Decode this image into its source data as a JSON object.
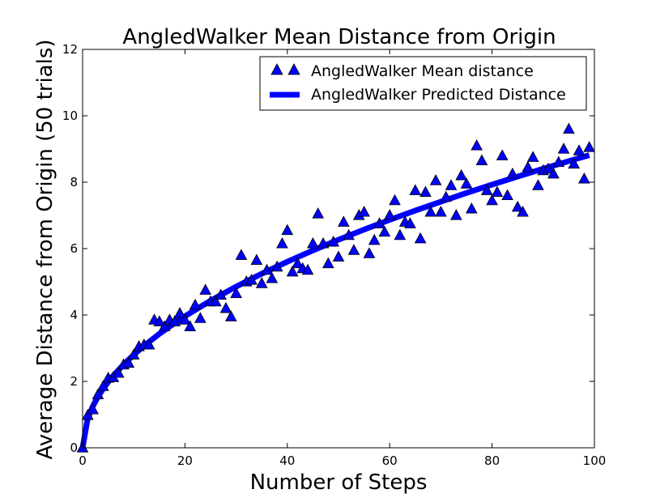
{
  "chart_data": {
    "type": "scatter",
    "title": "AngledWalker Mean Distance from Origin",
    "xlabel": "Number of Steps",
    "ylabel": "Average Distance from Origin (50 trials)",
    "xlim": [
      0,
      100
    ],
    "ylim": [
      0,
      12
    ],
    "xticks": [
      0,
      20,
      40,
      60,
      80,
      100
    ],
    "yticks": [
      0,
      2,
      4,
      6,
      8,
      10,
      12
    ],
    "grid": false,
    "legend_position": "top-right",
    "series": [
      {
        "name": "AngledWalker Mean distance",
        "kind": "scatter",
        "marker": "triangle-up",
        "color": "#0000ff",
        "x": [
          0,
          1,
          2,
          3,
          4,
          5,
          6,
          7,
          8,
          9,
          10,
          11,
          12,
          13,
          14,
          15,
          16,
          17,
          18,
          19,
          20,
          21,
          22,
          23,
          24,
          25,
          26,
          27,
          28,
          29,
          30,
          31,
          32,
          33,
          34,
          35,
          36,
          37,
          38,
          39,
          40,
          41,
          42,
          43,
          44,
          45,
          46,
          47,
          48,
          49,
          50,
          51,
          52,
          53,
          54,
          55,
          56,
          57,
          58,
          59,
          60,
          61,
          62,
          63,
          64,
          65,
          66,
          67,
          68,
          69,
          70,
          71,
          72,
          73,
          74,
          75,
          76,
          77,
          78,
          79,
          80,
          81,
          82,
          83,
          84,
          85,
          86,
          87,
          88,
          89,
          90,
          91,
          92,
          93,
          94,
          95,
          96,
          97,
          98,
          99
        ],
        "y": [
          0.0,
          0.98,
          1.15,
          1.6,
          1.85,
          2.1,
          2.12,
          2.25,
          2.5,
          2.55,
          2.8,
          3.05,
          3.1,
          3.1,
          3.85,
          3.8,
          3.65,
          3.85,
          3.8,
          4.05,
          3.85,
          3.65,
          4.3,
          3.9,
          4.75,
          4.4,
          4.4,
          4.6,
          4.2,
          3.95,
          4.65,
          5.8,
          5.0,
          5.05,
          5.65,
          4.95,
          5.35,
          5.1,
          5.45,
          6.15,
          6.55,
          5.3,
          5.55,
          5.4,
          5.35,
          6.15,
          7.05,
          6.15,
          5.55,
          6.2,
          5.75,
          6.8,
          6.4,
          5.95,
          7.0,
          7.1,
          5.85,
          6.25,
          6.75,
          6.5,
          7.0,
          7.45,
          6.4,
          6.8,
          6.75,
          7.75,
          6.3,
          7.7,
          7.1,
          8.05,
          7.1,
          7.55,
          7.9,
          7.0,
          8.2,
          7.95,
          7.2,
          9.1,
          8.65,
          7.75,
          7.45,
          7.7,
          8.8,
          7.6,
          8.25,
          7.25,
          7.1,
          8.45,
          8.75,
          7.9,
          8.35,
          8.4,
          8.25,
          8.6,
          9.0,
          9.6,
          8.55,
          8.95,
          8.1,
          9.05
        ]
      },
      {
        "name": "AngledWalker Predicted Distance",
        "kind": "line",
        "color": "#0000ff",
        "x": [
          0,
          1,
          2,
          3,
          4,
          5,
          6,
          8,
          10,
          12,
          15,
          18,
          20,
          25,
          30,
          35,
          40,
          45,
          50,
          55,
          60,
          65,
          70,
          75,
          80,
          85,
          90,
          95,
          99
        ],
        "y": [
          0.0,
          0.886,
          1.253,
          1.535,
          1.772,
          1.982,
          2.171,
          2.507,
          2.802,
          3.07,
          3.433,
          3.76,
          3.963,
          4.431,
          4.854,
          5.243,
          5.605,
          5.945,
          6.267,
          6.573,
          6.865,
          7.145,
          7.414,
          7.675,
          7.927,
          8.17,
          8.406,
          8.636,
          8.813
        ]
      }
    ]
  }
}
